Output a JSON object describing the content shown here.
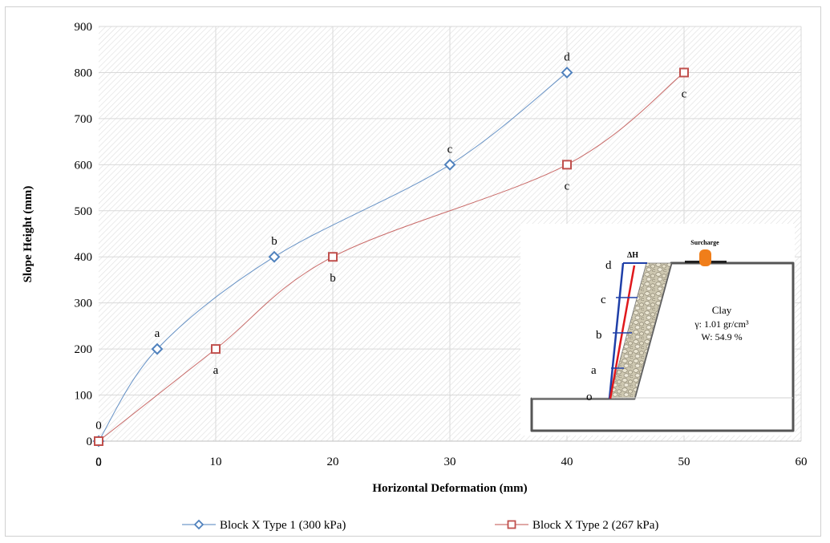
{
  "chart_data": {
    "type": "line",
    "xlabel": "Horizontal Deformation (mm)",
    "ylabel": "Slope Height (mm)",
    "xlim": [
      0,
      60
    ],
    "ylim": [
      0,
      900
    ],
    "x_ticks": [
      "0",
      "10",
      "20",
      "30",
      "40",
      "50",
      "60"
    ],
    "y_ticks": [
      "0",
      "100",
      "200",
      "300",
      "400",
      "500",
      "600",
      "700",
      "800",
      "900"
    ],
    "grid": true,
    "legend_position": "bottom",
    "series": [
      {
        "name": "Block X Type 1 (300 kPa)",
        "color": "#4f81bd",
        "marker": "diamond",
        "x": [
          0,
          5,
          15,
          30,
          40
        ],
        "y": [
          0,
          200,
          400,
          600,
          800
        ],
        "labels": [
          "0",
          "a",
          "b",
          "c",
          "d"
        ],
        "label_position": "above"
      },
      {
        "name": "Block X Type 2 (267 kPa)",
        "color": "#c0504d",
        "marker": "square",
        "x": [
          0,
          10,
          20,
          40,
          50
        ],
        "y": [
          0,
          200,
          400,
          600,
          800
        ],
        "labels": [
          "0",
          "a",
          "b",
          "c",
          "c"
        ],
        "label_position": "below"
      }
    ],
    "inset": {
      "surcharge_label": "Surcharge",
      "delta_label": "ΔH",
      "soil_label": "Clay",
      "gamma_label": "γ: 1.01 gr/cm³",
      "water_label": "W: 54.9 %",
      "level_labels": [
        "d",
        "c",
        "b",
        "a",
        "o"
      ]
    }
  }
}
